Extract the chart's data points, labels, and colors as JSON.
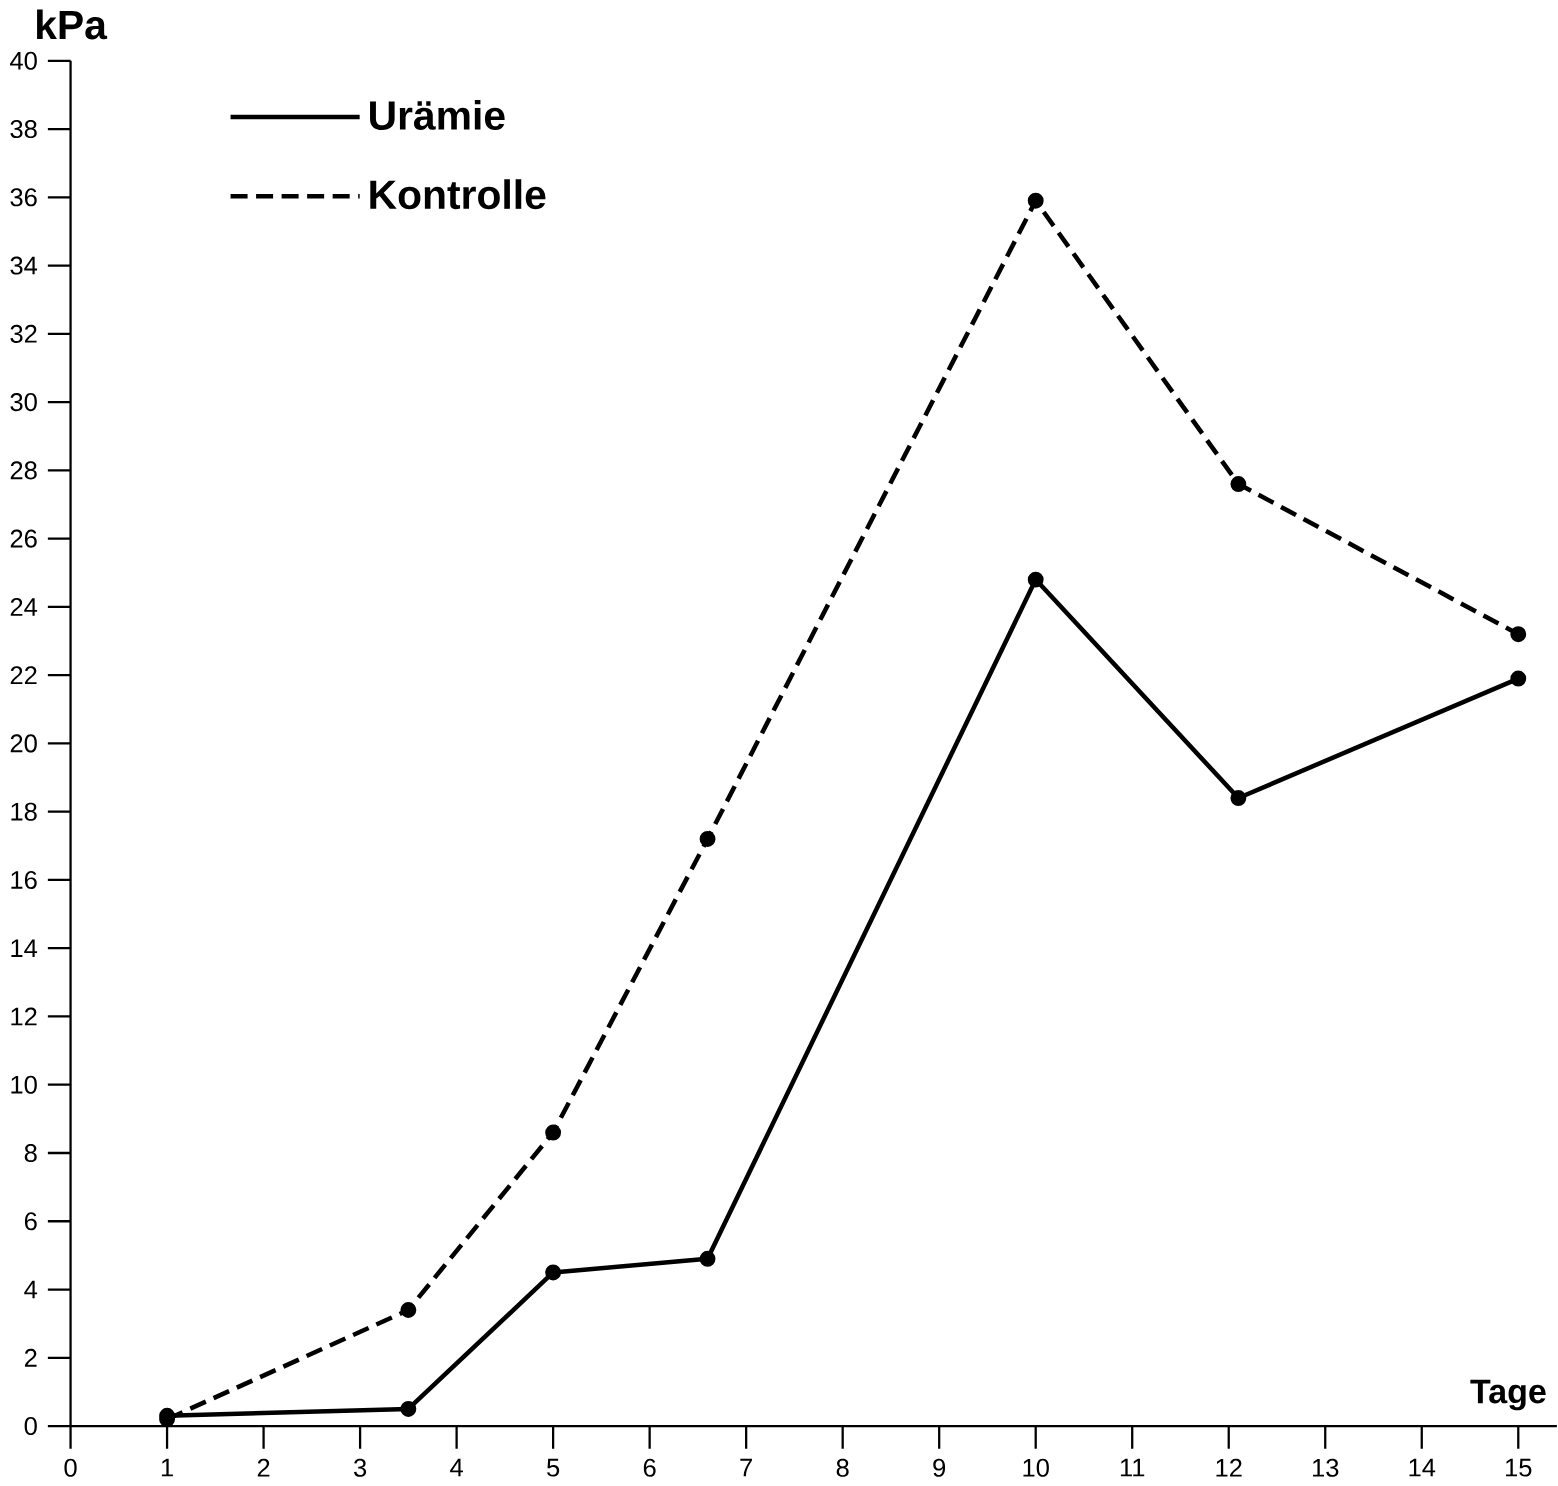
{
  "chart_data": {
    "type": "line",
    "xlabel": "Tage",
    "ylabel": "kPa",
    "xlim": [
      0,
      15.4
    ],
    "ylim": [
      0,
      40
    ],
    "xticks": [
      0,
      1,
      2,
      3,
      4,
      5,
      6,
      7,
      8,
      9,
      10,
      11,
      12,
      13,
      14,
      15
    ],
    "yticks": [
      0,
      2,
      4,
      6,
      8,
      10,
      12,
      14,
      16,
      18,
      20,
      22,
      24,
      26,
      28,
      30,
      32,
      34,
      36,
      38,
      40
    ],
    "marker": "circle",
    "legend": "top left",
    "grid": false,
    "series": [
      {
        "name": "Urämie",
        "color": "#000000",
        "line_style": "solid",
        "x": [
          1,
          3.5,
          5,
          6.6,
          10,
          12.1,
          15
        ],
        "values": [
          0.3,
          0.5,
          4.5,
          4.9,
          24.8,
          18.4,
          21.9
        ]
      },
      {
        "name": "Kontrolle",
        "color": "#000000",
        "line_style": "dashed",
        "x": [
          1,
          3.5,
          5,
          6.6,
          10,
          12.1,
          15
        ],
        "values": [
          0.2,
          3.4,
          8.6,
          17.2,
          35.9,
          27.6,
          23.2
        ]
      }
    ]
  }
}
